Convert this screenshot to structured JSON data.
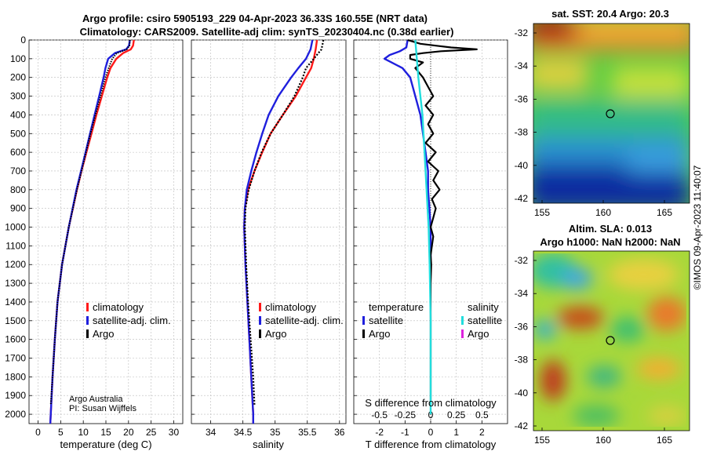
{
  "chart_data": {
    "title_line1": "Argo profile: csiro 5905193_229 04-Apr-2023 36.33S 160.55E (NRT data)",
    "title_line2": "Climatology: CARS2009. Satellite-adj clim: synTS_20230404.nc (0.38d earlier)",
    "colors": {
      "climatology": "#ff1a1a",
      "satellite": "#1f1fdd",
      "argo": "#000000",
      "sat_temp": "#22dddd",
      "argo_sal": "#dd22dd"
    },
    "depth_axis": {
      "ylim": [
        0,
        2050
      ],
      "ticks": [
        0,
        100,
        200,
        300,
        400,
        500,
        600,
        700,
        800,
        900,
        1000,
        1100,
        1200,
        1300,
        1400,
        1500,
        1600,
        1700,
        1800,
        1900,
        2000
      ]
    },
    "panels": [
      {
        "type": "line",
        "id": "temperature",
        "xlabel": "temperature (deg C)",
        "xlim": [
          -2,
          32
        ],
        "xticks": [
          0,
          5,
          10,
          15,
          20,
          25,
          30
        ],
        "legend": [
          "climatology",
          "satellite-adj. clim.",
          "Argo"
        ],
        "annotation": [
          "Argo Australia",
          "PI: Susan Wijffels"
        ],
        "series": [
          {
            "name": "climatology",
            "depth": [
              0,
              30,
              50,
              70,
              100,
              150,
              200,
              300,
              400,
              500,
              600,
              700,
              800,
              1000,
              1200,
              1400,
              1600,
              1800,
              2000,
              2050
            ],
            "values": [
              21.2,
              21.0,
              20.5,
              18.8,
              17.3,
              16.0,
              15.3,
              14.1,
              12.9,
              11.8,
              10.7,
              9.6,
              8.6,
              6.8,
              5.3,
              4.3,
              3.7,
              3.2,
              2.8,
              2.7
            ]
          },
          {
            "name": "satellite-adj. clim.",
            "depth": [
              0,
              30,
              50,
              70,
              100,
              150,
              200,
              300,
              400,
              500,
              600,
              700,
              800,
              1000,
              1200,
              1400,
              1600,
              1800,
              2000,
              2050
            ],
            "values": [
              20.3,
              20.1,
              19.5,
              17.0,
              15.5,
              14.9,
              14.5,
              13.5,
              12.5,
              11.5,
              10.5,
              9.5,
              8.5,
              6.8,
              5.3,
              4.3,
              3.7,
              3.2,
              2.8,
              2.7
            ]
          },
          {
            "name": "Argo",
            "depth": [
              0,
              30,
              50,
              70,
              100,
              150,
              200,
              300,
              400,
              500,
              600,
              700,
              800,
              1000,
              1200,
              1400,
              1600,
              1800,
              1950
            ],
            "values": [
              20.3,
              20.2,
              19.6,
              17.4,
              16.4,
              15.6,
              14.9,
              13.8,
              12.7,
              11.6,
              10.6,
              9.6,
              8.6,
              6.8,
              5.3,
              4.3,
              3.7,
              3.2,
              2.8
            ]
          }
        ]
      },
      {
        "type": "line",
        "id": "salinity",
        "xlabel": "salinity",
        "xlim": [
          33.7,
          36.1
        ],
        "xticks": [
          34,
          34.5,
          35,
          35.5,
          36
        ],
        "legend": [
          "climatology",
          "satellite-adj. clim.",
          "Argo"
        ],
        "series": [
          {
            "name": "climatology",
            "depth": [
              0,
              50,
              100,
              150,
              200,
              300,
              400,
              500,
              600,
              700,
              800,
              900,
              1000,
              1200,
              1400,
              1600,
              1800,
              2000,
              2050
            ],
            "values": [
              35.65,
              35.63,
              35.6,
              35.56,
              35.48,
              35.32,
              35.12,
              34.93,
              34.8,
              34.68,
              34.58,
              34.53,
              34.52,
              34.54,
              34.57,
              34.6,
              34.63,
              34.66,
              34.66
            ]
          },
          {
            "name": "satellite-adj. clim.",
            "depth": [
              0,
              50,
              100,
              150,
              200,
              300,
              400,
              500,
              600,
              700,
              800,
              900,
              1000,
              1200,
              1400,
              1600,
              1800,
              2000,
              2050
            ],
            "values": [
              35.58,
              35.55,
              35.48,
              35.36,
              35.25,
              35.05,
              34.9,
              34.8,
              34.71,
              34.63,
              34.56,
              34.53,
              34.52,
              34.54,
              34.57,
              34.6,
              34.63,
              34.66,
              34.66
            ]
          },
          {
            "name": "Argo",
            "depth": [
              0,
              50,
              100,
              150,
              200,
              300,
              400,
              500,
              600,
              700,
              800,
              900,
              1000,
              1200,
              1400,
              1600,
              1800,
              1950
            ],
            "values": [
              35.75,
              35.72,
              35.6,
              35.48,
              35.43,
              35.3,
              35.12,
              34.93,
              34.79,
              34.68,
              34.59,
              34.54,
              34.53,
              34.55,
              34.58,
              34.62,
              34.66,
              34.68
            ]
          }
        ]
      },
      {
        "type": "line",
        "id": "difference",
        "xlabel": "T difference from climatology",
        "xlabel_top": "S difference from climatology",
        "xlim": [
          -3,
          3
        ],
        "xticks": [
          -2,
          -1,
          0,
          1,
          2
        ],
        "sticks": [
          "-0.5",
          "-0.25",
          "0",
          "0.25",
          "0.5"
        ],
        "legend_temp_title": "temperature",
        "legend_sal_title": "salinity",
        "legend_temp": [
          "satellite",
          "Argo"
        ],
        "legend_sal": [
          "satellite",
          "Argo"
        ],
        "series": [
          {
            "name": "satellite T",
            "depth": [
              0,
              40,
              60,
              80,
              100,
              150,
              200,
              300,
              400,
              500,
              600,
              700,
              800,
              900,
              1000,
              1100,
              1200
            ],
            "values": [
              -0.9,
              -0.95,
              -1.2,
              -1.6,
              -1.8,
              -1.1,
              -0.8,
              -0.6,
              -0.4,
              -0.3,
              -0.2,
              -0.1,
              -0.1,
              -0.05,
              0,
              0,
              0
            ]
          },
          {
            "name": "Argo T",
            "depth": [
              0,
              20,
              30,
              40,
              50,
              60,
              70,
              80,
              100,
              120,
              150,
              200,
              250,
              300,
              350,
              400,
              450,
              500,
              550,
              600,
              650,
              700,
              750,
              800,
              850,
              900,
              950,
              1000,
              1050,
              1100,
              1150,
              1200,
              1300,
              1400,
              1500,
              1600,
              1800,
              1950
            ],
            "values": [
              -0.9,
              -0.4,
              0.2,
              0.8,
              1.8,
              0.4,
              -0.3,
              -0.8,
              -0.8,
              -0.3,
              -0.6,
              -0.3,
              -0.1,
              0.1,
              -0.2,
              0.1,
              -0.1,
              0.1,
              -0.2,
              0.2,
              -0.1,
              0.3,
              0.1,
              0.35,
              0.05,
              0.2,
              0.1,
              0.0,
              0.1,
              0.05,
              0.0,
              0.02,
              0.0,
              0.0,
              0.0,
              0.0,
              0.0,
              0.0
            ]
          },
          {
            "name": "satellite S",
            "depth": [
              0,
              200,
              400,
              600,
              800,
              1000,
              1200,
              1500,
              1800,
              2000
            ],
            "values": [
              -0.15,
              -0.12,
              -0.08,
              -0.06,
              -0.04,
              -0.02,
              -0.01,
              0,
              0,
              0
            ]
          }
        ]
      }
    ],
    "maps": [
      {
        "type": "heatmap",
        "id": "sst-map",
        "title_line1": "sat. SST: 20.4 Argo: 20.3",
        "lat_ticks": [
          "-32",
          "-34",
          "-36",
          "-38",
          "-40",
          "-42"
        ],
        "lon_ticks": [
          "155",
          "160",
          "165"
        ]
      },
      {
        "type": "heatmap",
        "id": "sla-map",
        "title_line1": "Altim. SLA: 0.013",
        "title_line2": "Argo h1000: NaN h2000: NaN",
        "lat_ticks": [
          "-32",
          "-34",
          "-36",
          "-38",
          "-40",
          "-42"
        ],
        "lon_ticks": [
          "155",
          "160",
          "165"
        ]
      }
    ],
    "copyright": "©IMOS 09-Apr-2023 11:40:07"
  }
}
